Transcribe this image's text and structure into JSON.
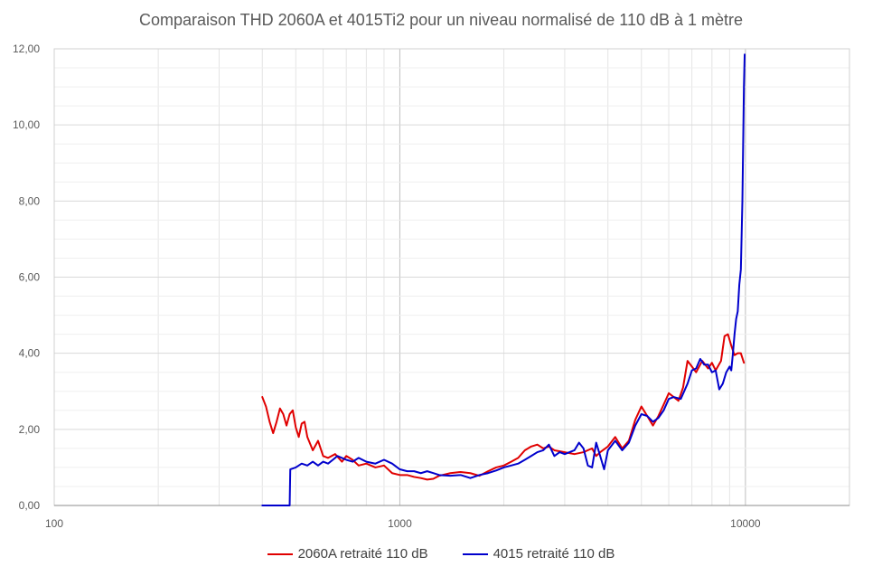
{
  "chart_data": {
    "type": "line",
    "title": "Comparaison THD 2060A et 4015Ti2 pour un niveau normalisé de 110 dB à 1 mètre",
    "xscale": "log",
    "xlim": [
      100,
      20000
    ],
    "ylim": [
      0,
      12
    ],
    "grid": true,
    "legend": "bottom",
    "x_ticks": [
      {
        "value": 100,
        "label": "100"
      },
      {
        "value": 1000,
        "label": "1000"
      },
      {
        "value": 10000,
        "label": "10000"
      }
    ],
    "y_ticks": [
      {
        "value": 0,
        "label": "0,00"
      },
      {
        "value": 2,
        "label": "2,00"
      },
      {
        "value": 4,
        "label": "4,00"
      },
      {
        "value": 6,
        "label": "6,00"
      },
      {
        "value": 8,
        "label": "8,00"
      },
      {
        "value": 10,
        "label": "10,00"
      },
      {
        "value": 12,
        "label": "12,00"
      }
    ],
    "series": [
      {
        "name": "2060A retraité 110 dB",
        "color": "#e00000",
        "points": [
          [
            400,
            2.85
          ],
          [
            410,
            2.6
          ],
          [
            420,
            2.2
          ],
          [
            430,
            1.9
          ],
          [
            440,
            2.2
          ],
          [
            450,
            2.55
          ],
          [
            460,
            2.4
          ],
          [
            470,
            2.1
          ],
          [
            480,
            2.4
          ],
          [
            490,
            2.5
          ],
          [
            500,
            2.05
          ],
          [
            510,
            1.8
          ],
          [
            520,
            2.15
          ],
          [
            530,
            2.2
          ],
          [
            540,
            1.8
          ],
          [
            560,
            1.45
          ],
          [
            580,
            1.7
          ],
          [
            600,
            1.3
          ],
          [
            620,
            1.25
          ],
          [
            650,
            1.35
          ],
          [
            680,
            1.15
          ],
          [
            700,
            1.3
          ],
          [
            730,
            1.2
          ],
          [
            760,
            1.05
          ],
          [
            800,
            1.1
          ],
          [
            850,
            1.0
          ],
          [
            900,
            1.05
          ],
          [
            950,
            0.85
          ],
          [
            1000,
            0.8
          ],
          [
            1050,
            0.8
          ],
          [
            1100,
            0.75
          ],
          [
            1150,
            0.72
          ],
          [
            1200,
            0.68
          ],
          [
            1250,
            0.7
          ],
          [
            1300,
            0.78
          ],
          [
            1400,
            0.85
          ],
          [
            1500,
            0.88
          ],
          [
            1600,
            0.85
          ],
          [
            1700,
            0.78
          ],
          [
            1800,
            0.9
          ],
          [
            1900,
            1.0
          ],
          [
            2000,
            1.05
          ],
          [
            2100,
            1.15
          ],
          [
            2200,
            1.25
          ],
          [
            2300,
            1.45
          ],
          [
            2400,
            1.55
          ],
          [
            2500,
            1.6
          ],
          [
            2600,
            1.5
          ],
          [
            2700,
            1.55
          ],
          [
            2800,
            1.45
          ],
          [
            3000,
            1.4
          ],
          [
            3200,
            1.35
          ],
          [
            3400,
            1.4
          ],
          [
            3600,
            1.5
          ],
          [
            3700,
            1.3
          ],
          [
            3800,
            1.4
          ],
          [
            4000,
            1.55
          ],
          [
            4200,
            1.8
          ],
          [
            4400,
            1.5
          ],
          [
            4600,
            1.7
          ],
          [
            4800,
            2.25
          ],
          [
            5000,
            2.6
          ],
          [
            5200,
            2.35
          ],
          [
            5400,
            2.1
          ],
          [
            5600,
            2.35
          ],
          [
            5800,
            2.65
          ],
          [
            6000,
            2.95
          ],
          [
            6200,
            2.85
          ],
          [
            6400,
            2.75
          ],
          [
            6600,
            3.1
          ],
          [
            6800,
            3.8
          ],
          [
            7000,
            3.65
          ],
          [
            7200,
            3.5
          ],
          [
            7500,
            3.8
          ],
          [
            7800,
            3.6
          ],
          [
            8000,
            3.75
          ],
          [
            8200,
            3.55
          ],
          [
            8500,
            3.8
          ],
          [
            8700,
            4.45
          ],
          [
            8900,
            4.5
          ],
          [
            9100,
            4.2
          ],
          [
            9300,
            3.95
          ],
          [
            9500,
            4.0
          ],
          [
            9700,
            4.0
          ],
          [
            9900,
            3.75
          ]
        ]
      },
      {
        "name": "4015 retraité 110 dB",
        "color": "#0000cc",
        "points": [
          [
            400,
            0.0
          ],
          [
            480,
            0.0
          ],
          [
            482,
            0.95
          ],
          [
            500,
            1.0
          ],
          [
            520,
            1.1
          ],
          [
            540,
            1.05
          ],
          [
            560,
            1.15
          ],
          [
            580,
            1.05
          ],
          [
            600,
            1.15
          ],
          [
            620,
            1.1
          ],
          [
            640,
            1.2
          ],
          [
            660,
            1.3
          ],
          [
            680,
            1.25
          ],
          [
            700,
            1.2
          ],
          [
            730,
            1.15
          ],
          [
            760,
            1.25
          ],
          [
            800,
            1.15
          ],
          [
            850,
            1.1
          ],
          [
            900,
            1.2
          ],
          [
            950,
            1.1
          ],
          [
            1000,
            0.95
          ],
          [
            1050,
            0.9
          ],
          [
            1100,
            0.9
          ],
          [
            1150,
            0.85
          ],
          [
            1200,
            0.9
          ],
          [
            1250,
            0.85
          ],
          [
            1300,
            0.8
          ],
          [
            1400,
            0.78
          ],
          [
            1500,
            0.8
          ],
          [
            1600,
            0.72
          ],
          [
            1700,
            0.8
          ],
          [
            1800,
            0.85
          ],
          [
            1900,
            0.92
          ],
          [
            2000,
            1.0
          ],
          [
            2100,
            1.05
          ],
          [
            2200,
            1.1
          ],
          [
            2300,
            1.2
          ],
          [
            2400,
            1.3
          ],
          [
            2500,
            1.4
          ],
          [
            2600,
            1.45
          ],
          [
            2700,
            1.6
          ],
          [
            2800,
            1.3
          ],
          [
            2900,
            1.4
          ],
          [
            3000,
            1.35
          ],
          [
            3200,
            1.45
          ],
          [
            3300,
            1.65
          ],
          [
            3400,
            1.5
          ],
          [
            3500,
            1.05
          ],
          [
            3600,
            1.0
          ],
          [
            3700,
            1.65
          ],
          [
            3800,
            1.3
          ],
          [
            3900,
            0.95
          ],
          [
            4000,
            1.45
          ],
          [
            4200,
            1.7
          ],
          [
            4400,
            1.45
          ],
          [
            4600,
            1.65
          ],
          [
            4800,
            2.1
          ],
          [
            5000,
            2.4
          ],
          [
            5200,
            2.35
          ],
          [
            5400,
            2.2
          ],
          [
            5600,
            2.3
          ],
          [
            5800,
            2.5
          ],
          [
            6000,
            2.8
          ],
          [
            6200,
            2.85
          ],
          [
            6500,
            2.8
          ],
          [
            6800,
            3.2
          ],
          [
            7000,
            3.55
          ],
          [
            7200,
            3.6
          ],
          [
            7400,
            3.85
          ],
          [
            7600,
            3.7
          ],
          [
            7800,
            3.7
          ],
          [
            8000,
            3.5
          ],
          [
            8200,
            3.55
          ],
          [
            8400,
            3.05
          ],
          [
            8600,
            3.2
          ],
          [
            8800,
            3.5
          ],
          [
            9000,
            3.65
          ],
          [
            9100,
            3.55
          ],
          [
            9200,
            4.0
          ],
          [
            9300,
            4.5
          ],
          [
            9400,
            4.9
          ],
          [
            9500,
            5.1
          ],
          [
            9600,
            5.8
          ],
          [
            9700,
            6.2
          ],
          [
            9800,
            8.0
          ],
          [
            9900,
            11.0
          ],
          [
            9950,
            11.85
          ]
        ]
      }
    ]
  }
}
